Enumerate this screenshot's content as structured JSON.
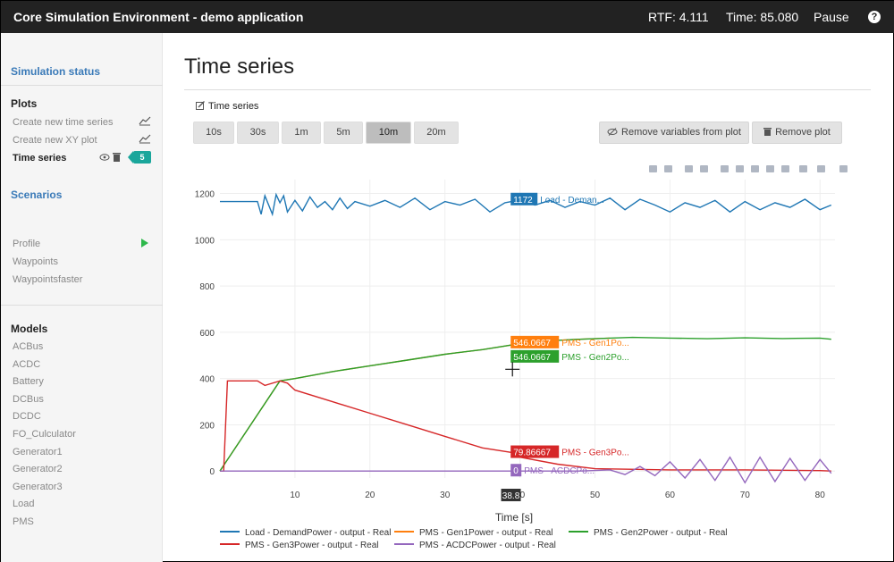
{
  "header": {
    "title": "Core Simulation Environment - demo application",
    "rtf": "RTF: 4.111",
    "time": "Time: 85.080",
    "pause": "Pause",
    "help": "?"
  },
  "sidebar": {
    "simulation_status": "Simulation status",
    "plots_heading": "Plots",
    "plot_items": [
      {
        "label": "Create new time series"
      },
      {
        "label": "Create new XY plot"
      },
      {
        "label": "Time series",
        "badge": "5"
      }
    ],
    "scenarios_heading": "Scenarios",
    "scenario_items": [
      {
        "label": "Profile"
      },
      {
        "label": "Waypoints"
      },
      {
        "label": "Waypointsfaster"
      }
    ],
    "models_heading": "Models",
    "model_items": [
      "ACBus",
      "ACDC",
      "Battery",
      "DCBus",
      "DCDC",
      "FO_Culculator",
      "Generator1",
      "Generator2",
      "Generator3",
      "Load",
      "PMS"
    ]
  },
  "main": {
    "title": "Time series",
    "panel_label": "Time series",
    "time_buttons": [
      "10s",
      "30s",
      "1m",
      "5m",
      "10m",
      "20m"
    ],
    "active_time_button": "10m",
    "remove_variables": "Remove variables from plot",
    "remove_plot": "Remove plot"
  },
  "chart_data": {
    "type": "line",
    "xlabel": "Time [s]",
    "ylabel": "",
    "xlim": [
      0,
      82
    ],
    "ylim": [
      -30,
      1260
    ],
    "xticks": [
      10,
      20,
      30,
      40,
      50,
      60,
      70,
      80
    ],
    "yticks": [
      0,
      200,
      400,
      600,
      800,
      1000,
      1200
    ],
    "grid": true,
    "legend_position": "bottom",
    "hover_x": "38.8",
    "series": [
      {
        "name": "Load - DemandPower - output - Real",
        "color": "#1f77b4",
        "x": [
          0,
          5,
          5.5,
          6,
          7,
          7.5,
          8,
          8.5,
          9,
          10,
          11,
          12,
          13,
          14,
          15,
          16,
          17,
          18,
          20,
          22,
          24,
          26,
          28,
          30,
          32,
          34,
          36,
          38,
          40,
          42,
          44,
          46,
          48,
          50,
          52,
          54,
          56,
          58,
          60,
          62,
          64,
          66,
          68,
          70,
          72,
          74,
          76,
          78,
          80,
          81.5
        ],
        "y": [
          1165,
          1165,
          1110,
          1190,
          1110,
          1195,
          1160,
          1190,
          1120,
          1170,
          1125,
          1185,
          1140,
          1165,
          1130,
          1180,
          1135,
          1165,
          1145,
          1170,
          1140,
          1180,
          1130,
          1165,
          1150,
          1175,
          1120,
          1160,
          1172,
          1150,
          1170,
          1140,
          1165,
          1150,
          1180,
          1130,
          1175,
          1150,
          1120,
          1160,
          1140,
          1170,
          1120,
          1165,
          1130,
          1160,
          1140,
          1175,
          1130,
          1150
        ],
        "hover_value": "1172",
        "hover_label": "Load - Deman..."
      },
      {
        "name": "PMS - Gen1Power - output - Real",
        "color": "#ff7f0e",
        "x": [
          0,
          8,
          10,
          15,
          20,
          25,
          30,
          35,
          39,
          42,
          48,
          52
        ],
        "y": [
          0,
          390,
          400,
          430,
          455,
          480,
          505,
          525,
          546,
          560,
          570,
          575
        ],
        "hover_value": "546.0667",
        "hover_label": "PMS - Gen1Po..."
      },
      {
        "name": "PMS - Gen2Power - output - Real",
        "color": "#2ca02c",
        "x": [
          0,
          8,
          10,
          15,
          20,
          25,
          30,
          35,
          39,
          42,
          48,
          52,
          55,
          60,
          65,
          70,
          75,
          80,
          81.5
        ],
        "y": [
          0,
          390,
          400,
          430,
          455,
          480,
          505,
          525,
          546,
          560,
          570,
          575,
          578,
          575,
          572,
          576,
          573,
          575,
          570
        ],
        "hover_value": "546.0667",
        "hover_label": "PMS - Gen2Po..."
      },
      {
        "name": "PMS - Gen3Power - output - Real",
        "color": "#d62728",
        "x": [
          0,
          0.5,
          1,
          5,
          6,
          8,
          9,
          10,
          15,
          20,
          25,
          30,
          35,
          39,
          40,
          45,
          50,
          60,
          70,
          80,
          81.5
        ],
        "y": [
          0,
          0,
          390,
          390,
          370,
          390,
          380,
          350,
          300,
          250,
          200,
          150,
          100,
          79.87,
          60,
          30,
          10,
          5,
          5,
          2,
          0
        ],
        "hover_value": "79.86667",
        "hover_label": "PMS - Gen3Po..."
      },
      {
        "name": "PMS - ACDCPower - output - Real",
        "color": "#9467bd",
        "x": [
          0,
          39,
          48,
          52,
          54,
          56,
          58,
          60,
          62,
          64,
          66,
          68,
          70,
          72,
          74,
          76,
          78,
          80,
          81.5
        ],
        "y": [
          0,
          0,
          0,
          5,
          -15,
          20,
          -20,
          40,
          -30,
          50,
          -40,
          60,
          -50,
          60,
          -45,
          55,
          -40,
          50,
          -10
        ],
        "hover_value": "0",
        "hover_label": "PMS - ACDCPo..."
      }
    ]
  }
}
